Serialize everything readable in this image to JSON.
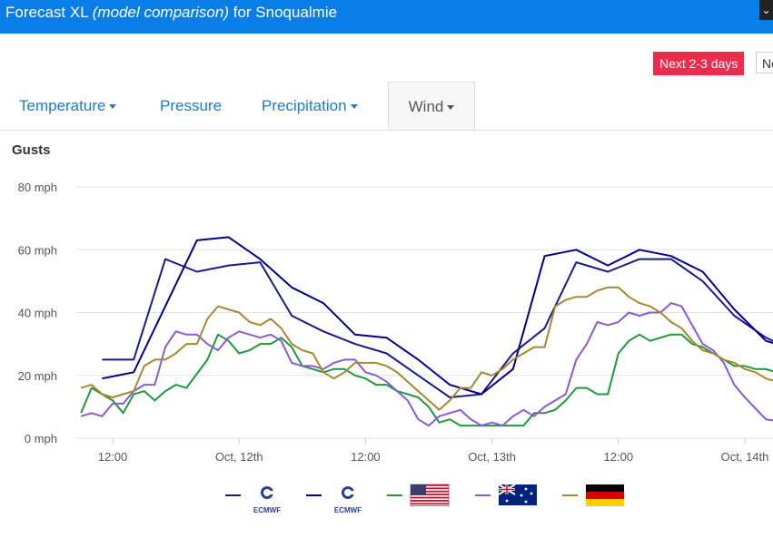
{
  "header": {
    "title_main": "Forecast XL",
    "title_italic": "(model comparison)",
    "title_suffix": "for Snoqualmie"
  },
  "range_buttons": [
    "Next 2-3 days",
    "Ne"
  ],
  "tabs": [
    {
      "label": "Temperature",
      "dropdown": true
    },
    {
      "label": "Pressure",
      "dropdown": false
    },
    {
      "label": "Precipitation",
      "dropdown": true
    },
    {
      "label": "Wind",
      "dropdown": true,
      "active": true
    }
  ],
  "chart_data": {
    "type": "line",
    "title": "Gusts",
    "y_unit": "mph",
    "y_ticks": [
      "0 mph",
      "20 mph",
      "40 mph",
      "60 mph",
      "80 mph"
    ],
    "ylim": [
      0,
      80
    ],
    "x_unit": "hours",
    "xlim": [
      -4,
      66
    ],
    "x_ticks": [
      {
        "x": 0,
        "label": "12:00"
      },
      {
        "x": 12,
        "label": "Oct, 12th"
      },
      {
        "x": 24,
        "label": "12:00"
      },
      {
        "x": 36,
        "label": "Oct, 13th"
      },
      {
        "x": 48,
        "label": "12:00"
      },
      {
        "x": 60,
        "label": "Oct, 14th"
      }
    ],
    "grid": true,
    "legend_position": "bottom",
    "series": [
      {
        "legend_icon": "ecmwf-logo",
        "legend_text": "ECMWF",
        "color": "#1a1a8c",
        "points": [
          [
            -1,
            25
          ],
          [
            2,
            25
          ],
          [
            5,
            57
          ],
          [
            8,
            53
          ],
          [
            11,
            55
          ],
          [
            14,
            56
          ],
          [
            17,
            39
          ],
          [
            20,
            34
          ],
          [
            23,
            30
          ],
          [
            26,
            27
          ],
          [
            29,
            20
          ],
          [
            32,
            13
          ],
          [
            35,
            14
          ],
          [
            38,
            27
          ],
          [
            41,
            35
          ],
          [
            44,
            56
          ],
          [
            47,
            53
          ],
          [
            50,
            57
          ],
          [
            53,
            57
          ],
          [
            56,
            50
          ],
          [
            59,
            39
          ],
          [
            62,
            32
          ],
          [
            66,
            26
          ]
        ]
      },
      {
        "legend_icon": "ecmwf-logo",
        "legend_text": "ECMWF",
        "color": "#00008b",
        "points": [
          [
            -1,
            19
          ],
          [
            2,
            21
          ],
          [
            5,
            42
          ],
          [
            8,
            63
          ],
          [
            11,
            64
          ],
          [
            14,
            57
          ],
          [
            17,
            48
          ],
          [
            20,
            43
          ],
          [
            23,
            33
          ],
          [
            26,
            32
          ],
          [
            29,
            25
          ],
          [
            32,
            17
          ],
          [
            35,
            14
          ],
          [
            38,
            22
          ],
          [
            41,
            58
          ],
          [
            44,
            60
          ],
          [
            47,
            55
          ],
          [
            50,
            60
          ],
          [
            53,
            58
          ],
          [
            56,
            53
          ],
          [
            59,
            41
          ],
          [
            62,
            31
          ],
          [
            66,
            27
          ]
        ]
      },
      {
        "legend_icon": "usa-flag",
        "color": "#1d9a3a",
        "points": [
          [
            -3,
            8
          ],
          [
            -2,
            16
          ],
          [
            0,
            12
          ],
          [
            1,
            8
          ],
          [
            2,
            14
          ],
          [
            3,
            15
          ],
          [
            4,
            12
          ],
          [
            5,
            15
          ],
          [
            6,
            17
          ],
          [
            7,
            16
          ],
          [
            9,
            25
          ],
          [
            10,
            33
          ],
          [
            11,
            31
          ],
          [
            12,
            27
          ],
          [
            13,
            28
          ],
          [
            14,
            30
          ],
          [
            15,
            30
          ],
          [
            16,
            32
          ],
          [
            17,
            29
          ],
          [
            18,
            23
          ],
          [
            19,
            22
          ],
          [
            20,
            21
          ],
          [
            21,
            22
          ],
          [
            22,
            22
          ],
          [
            23,
            20
          ],
          [
            24,
            19
          ],
          [
            25,
            17
          ],
          [
            26,
            17
          ],
          [
            27,
            15
          ],
          [
            28,
            14
          ],
          [
            29,
            13
          ],
          [
            30,
            10
          ],
          [
            31,
            5
          ],
          [
            32,
            6
          ],
          [
            33,
            4
          ],
          [
            35,
            4
          ],
          [
            37,
            4
          ],
          [
            39,
            4
          ],
          [
            40,
            8
          ],
          [
            41,
            8
          ],
          [
            42,
            9
          ],
          [
            43,
            12
          ],
          [
            44,
            16
          ],
          [
            45,
            16
          ],
          [
            46,
            14
          ],
          [
            47,
            14
          ],
          [
            48,
            27
          ],
          [
            49,
            31
          ],
          [
            50,
            33
          ],
          [
            51,
            31
          ],
          [
            52,
            32
          ],
          [
            53,
            33
          ],
          [
            54,
            33
          ],
          [
            55,
            30
          ],
          [
            56,
            29
          ],
          [
            57,
            27
          ],
          [
            58,
            25
          ],
          [
            59,
            23
          ],
          [
            60,
            23
          ],
          [
            61,
            22
          ],
          [
            62,
            22
          ],
          [
            64,
            20
          ],
          [
            66,
            20
          ]
        ]
      },
      {
        "legend_icon": "australia-flag",
        "color": "#8a5ad6",
        "points": [
          [
            -3,
            7
          ],
          [
            -2,
            8
          ],
          [
            -1,
            7
          ],
          [
            0,
            11
          ],
          [
            1,
            11
          ],
          [
            2,
            15
          ],
          [
            3,
            17
          ],
          [
            4,
            17
          ],
          [
            5,
            29
          ],
          [
            6,
            34
          ],
          [
            7,
            33
          ],
          [
            8,
            33
          ],
          [
            9,
            30
          ],
          [
            10,
            28
          ],
          [
            11,
            32
          ],
          [
            12,
            34
          ],
          [
            13,
            33
          ],
          [
            14,
            32
          ],
          [
            15,
            33
          ],
          [
            16,
            31
          ],
          [
            17,
            24
          ],
          [
            18,
            23
          ],
          [
            19,
            23
          ],
          [
            20,
            22
          ],
          [
            21,
            24
          ],
          [
            22,
            25
          ],
          [
            23,
            25
          ],
          [
            24,
            21
          ],
          [
            25,
            20
          ],
          [
            26,
            18
          ],
          [
            27,
            15
          ],
          [
            28,
            12
          ],
          [
            29,
            6
          ],
          [
            30,
            4
          ],
          [
            31,
            7
          ],
          [
            32,
            8
          ],
          [
            33,
            9
          ],
          [
            34,
            6
          ],
          [
            35,
            4
          ],
          [
            36,
            5
          ],
          [
            37,
            4
          ],
          [
            38,
            7
          ],
          [
            39,
            9
          ],
          [
            40,
            7
          ],
          [
            41,
            10
          ],
          [
            42,
            12
          ],
          [
            43,
            14
          ],
          [
            44,
            25
          ],
          [
            45,
            30
          ],
          [
            46,
            37
          ],
          [
            47,
            36
          ],
          [
            48,
            37
          ],
          [
            49,
            40
          ],
          [
            50,
            39
          ],
          [
            51,
            40
          ],
          [
            52,
            40
          ],
          [
            53,
            43
          ],
          [
            54,
            42
          ],
          [
            55,
            36
          ],
          [
            56,
            30
          ],
          [
            57,
            28
          ],
          [
            58,
            24
          ],
          [
            59,
            17
          ],
          [
            60,
            13
          ],
          [
            62,
            6
          ],
          [
            64,
            5
          ],
          [
            66,
            4
          ]
        ]
      },
      {
        "legend_icon": "germany-flag",
        "color": "#a8872e",
        "points": [
          [
            -3,
            16
          ],
          [
            -2,
            17
          ],
          [
            -1,
            14
          ],
          [
            0,
            13
          ],
          [
            1,
            14
          ],
          [
            2,
            15
          ],
          [
            3,
            23
          ],
          [
            4,
            25
          ],
          [
            5,
            25
          ],
          [
            6,
            27
          ],
          [
            7,
            30
          ],
          [
            8,
            30
          ],
          [
            9,
            38
          ],
          [
            10,
            42
          ],
          [
            11,
            41
          ],
          [
            12,
            40
          ],
          [
            13,
            37
          ],
          [
            14,
            36
          ],
          [
            15,
            38
          ],
          [
            16,
            35
          ],
          [
            17,
            30
          ],
          [
            18,
            28
          ],
          [
            19,
            27
          ],
          [
            20,
            21
          ],
          [
            21,
            19
          ],
          [
            22,
            21
          ],
          [
            23,
            24
          ],
          [
            24,
            24
          ],
          [
            25,
            24
          ],
          [
            26,
            23
          ],
          [
            27,
            21
          ],
          [
            28,
            18
          ],
          [
            29,
            15
          ],
          [
            30,
            12
          ],
          [
            31,
            9
          ],
          [
            32,
            12
          ],
          [
            33,
            16
          ],
          [
            34,
            16
          ],
          [
            35,
            21
          ],
          [
            36,
            20
          ],
          [
            37,
            22
          ],
          [
            38,
            25
          ],
          [
            39,
            27
          ],
          [
            40,
            29
          ],
          [
            41,
            29
          ],
          [
            42,
            42
          ],
          [
            43,
            44
          ],
          [
            44,
            45
          ],
          [
            45,
            45
          ],
          [
            46,
            47
          ],
          [
            47,
            48
          ],
          [
            48,
            48
          ],
          [
            49,
            45
          ],
          [
            50,
            43
          ],
          [
            51,
            42
          ],
          [
            52,
            40
          ],
          [
            53,
            37
          ],
          [
            54,
            35
          ],
          [
            55,
            31
          ],
          [
            56,
            28
          ],
          [
            57,
            27
          ],
          [
            58,
            25
          ],
          [
            59,
            24
          ],
          [
            60,
            22
          ],
          [
            61,
            21
          ],
          [
            62,
            19
          ],
          [
            64,
            17
          ],
          [
            66,
            16
          ]
        ]
      }
    ]
  }
}
